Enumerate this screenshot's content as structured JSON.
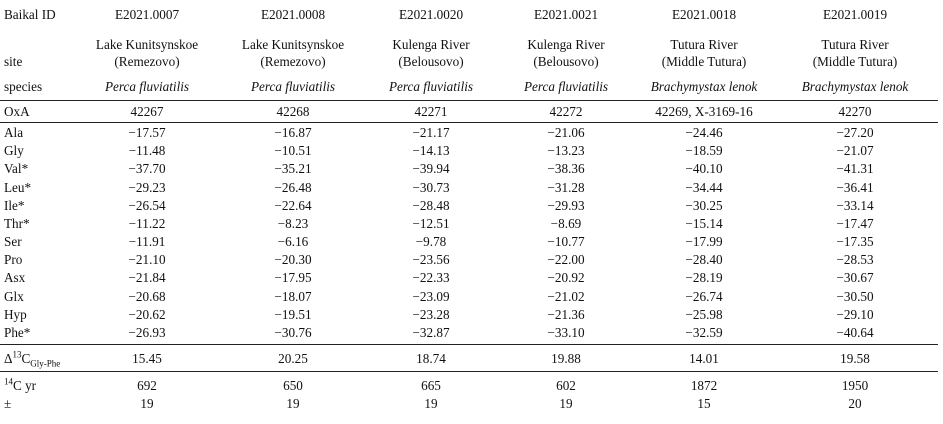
{
  "columns": [
    {
      "id": "E2021.0007",
      "site_line1": "Lake Kunitsynskoe",
      "site_line2": "(Remezovo)",
      "species": "Perca fluviatilis",
      "oxa": "42267",
      "values": [
        "−17.57",
        "−11.48",
        "−37.70",
        "−29.23",
        "−26.54",
        "−11.22",
        "−11.91",
        "−21.10",
        "−21.84",
        "−20.68",
        "−20.62",
        "−26.93"
      ],
      "delta": "15.45",
      "c14": "692",
      "pm": "19"
    },
    {
      "id": "E2021.0008",
      "site_line1": "Lake Kunitsynskoe",
      "site_line2": "(Remezovo)",
      "species": "Perca fluviatilis",
      "oxa": "42268",
      "values": [
        "−16.87",
        "−10.51",
        "−35.21",
        "−26.48",
        "−22.64",
        "−8.23",
        "−6.16",
        "−20.30",
        "−17.95",
        "−18.07",
        "−19.51",
        "−30.76"
      ],
      "delta": "20.25",
      "c14": "650",
      "pm": "19"
    },
    {
      "id": "E2021.0020",
      "site_line1": "Kulenga River",
      "site_line2": "(Belousovo)",
      "species": "Perca fluviatilis",
      "oxa": "42271",
      "values": [
        "−21.17",
        "−14.13",
        "−39.94",
        "−30.73",
        "−28.48",
        "−12.51",
        "−9.78",
        "−23.56",
        "−22.33",
        "−23.09",
        "−23.28",
        "−32.87"
      ],
      "delta": "18.74",
      "c14": "665",
      "pm": "19"
    },
    {
      "id": "E2021.0021",
      "site_line1": "Kulenga River",
      "site_line2": "(Belousovo)",
      "species": "Perca fluviatilis",
      "oxa": "42272",
      "values": [
        "−21.06",
        "−13.23",
        "−38.36",
        "−31.28",
        "−29.93",
        "−8.69",
        "−10.77",
        "−22.00",
        "−20.92",
        "−21.02",
        "−21.36",
        "−33.10"
      ],
      "delta": "19.88",
      "c14": "602",
      "pm": "19"
    },
    {
      "id": "E2021.0018",
      "site_line1": "Tutura River",
      "site_line2": "(Middle Tutura)",
      "species": "Brachymystax lenok",
      "oxa": "42269, X-3169-16",
      "values": [
        "−24.46",
        "−18.59",
        "−40.10",
        "−34.44",
        "−30.25",
        "−15.14",
        "−17.99",
        "−28.40",
        "−28.19",
        "−26.74",
        "−25.98",
        "−32.59"
      ],
      "delta": "14.01",
      "c14": "1872",
      "pm": "15"
    },
    {
      "id": "E2021.0019",
      "site_line1": "Tutura River",
      "site_line2": "(Middle Tutura)",
      "species": "Brachymystax lenok",
      "oxa": "42270",
      "values": [
        "−27.20",
        "−21.07",
        "−41.31",
        "−36.41",
        "−33.14",
        "−17.47",
        "−17.35",
        "−28.53",
        "−30.67",
        "−30.50",
        "−29.10",
        "−40.64"
      ],
      "delta": "19.58",
      "c14": "1950",
      "pm": "20"
    }
  ],
  "labels": {
    "baikal_id": "Baikal ID",
    "site": "site",
    "species": "species",
    "oxa": "OxA",
    "amino_acids": [
      "Ala",
      "Gly",
      "Val*",
      "Leu*",
      "Ile*",
      "Thr*",
      "Ser",
      "Pro",
      "Asx",
      "Glx",
      "Hyp",
      "Phe*"
    ],
    "delta_prefix": "Δ",
    "delta_sup": "13",
    "delta_main": "C",
    "delta_sub": "Gly-Phe",
    "c14_sup": "14",
    "c14_main": "C yr",
    "pm": "±"
  }
}
